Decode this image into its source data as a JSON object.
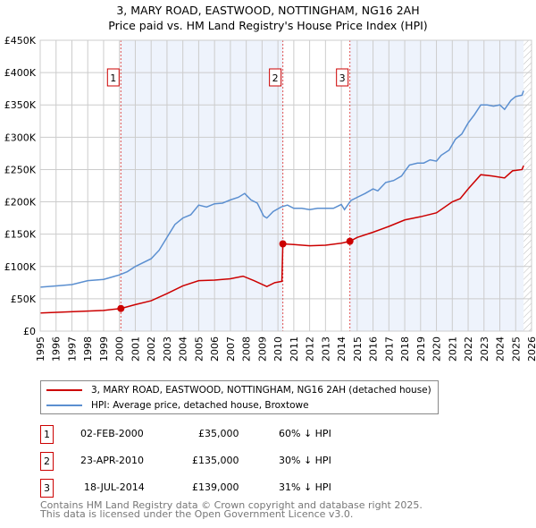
{
  "title": "3, MARY ROAD, EASTWOOD, NOTTINGHAM, NG16 2AH",
  "subtitle": "Price paid vs. HM Land Registry's House Price Index (HPI)",
  "colors": {
    "property": "#cc0000",
    "hpi": "#5b8fd0",
    "shade": "#eef3fc"
  },
  "chart_data": {
    "type": "line",
    "xlim": [
      1995,
      2026
    ],
    "ylim": [
      0,
      450000
    ],
    "x_ticks": [
      "1995",
      "1996",
      "1997",
      "1998",
      "1999",
      "2000",
      "2001",
      "2002",
      "2003",
      "2004",
      "2005",
      "2006",
      "2007",
      "2008",
      "2009",
      "2010",
      "2011",
      "2012",
      "2013",
      "2014",
      "2015",
      "2016",
      "2017",
      "2018",
      "2019",
      "2020",
      "2021",
      "2022",
      "2023",
      "2024",
      "2025",
      "2026"
    ],
    "y_ticks": [
      {
        "v": 0,
        "label": "£0"
      },
      {
        "v": 50000,
        "label": "£50K"
      },
      {
        "v": 100000,
        "label": "£100K"
      },
      {
        "v": 150000,
        "label": "£150K"
      },
      {
        "v": 200000,
        "label": "£200K"
      },
      {
        "v": 250000,
        "label": "£250K"
      },
      {
        "v": 300000,
        "label": "£300K"
      },
      {
        "v": 350000,
        "label": "£350K"
      },
      {
        "v": 400000,
        "label": "£400K"
      },
      {
        "v": 450000,
        "label": "£450K"
      }
    ],
    "series": [
      {
        "name": "3, MARY ROAD, EASTWOOD, NOTTINGHAM, NG16 2AH (detached house)",
        "color": "#cc0000",
        "x": [
          1995,
          1999,
          2000.09,
          2001,
          2002,
          2003,
          2004,
          2005,
          2006,
          2007,
          2007.8,
          2008.5,
          2009.3,
          2009.8,
          2010.25,
          2010.31,
          2011,
          2012,
          2013,
          2014,
          2014.54,
          2015,
          2016,
          2017,
          2018,
          2019,
          2020,
          2021,
          2021.5,
          2022,
          2022.8,
          2023.5,
          2024.3,
          2024.8,
          2025.4,
          2025.5
        ],
        "y": [
          28000,
          32000,
          35000,
          41000,
          47000,
          58000,
          70000,
          78000,
          79000,
          81000,
          85000,
          78000,
          69000,
          75000,
          77000,
          135000,
          134000,
          132000,
          133000,
          136000,
          139000,
          145000,
          153000,
          162000,
          172000,
          177000,
          183000,
          200000,
          205000,
          220000,
          242000,
          240000,
          237000,
          248000,
          250000,
          256000
        ]
      },
      {
        "name": "HPI: Average price, detached house, Broxtowe",
        "color": "#5b8fd0",
        "x": [
          1995,
          1996,
          1997,
          1998,
          1999,
          2000,
          2000.5,
          2001,
          2002,
          2002.5,
          2003,
          2003.5,
          2004,
          2004.5,
          2005,
          2005.5,
          2006,
          2006.5,
          2007,
          2007.5,
          2007.9,
          2008.3,
          2008.7,
          2009.1,
          2009.3,
          2009.7,
          2010.2,
          2010.6,
          2011,
          2011.5,
          2012,
          2012.5,
          2013,
          2013.5,
          2014,
          2014.2,
          2014.6,
          2015,
          2015.5,
          2016,
          2016.3,
          2016.8,
          2017.3,
          2017.8,
          2018,
          2018.3,
          2018.8,
          2019.2,
          2019.6,
          2020,
          2020.3,
          2020.8,
          2021.2,
          2021.6,
          2022,
          2022.4,
          2022.8,
          2023.2,
          2023.6,
          2024,
          2024.3,
          2024.7,
          2025,
          2025.4,
          2025.5
        ],
        "y": [
          68000,
          70000,
          72000,
          78000,
          80000,
          87000,
          92000,
          100000,
          112000,
          125000,
          145000,
          165000,
          175000,
          180000,
          195000,
          192000,
          197000,
          198000,
          203000,
          207000,
          213000,
          203000,
          198000,
          178000,
          175000,
          185000,
          192000,
          195000,
          190000,
          190000,
          188000,
          190000,
          190000,
          190000,
          196000,
          188000,
          202000,
          207000,
          213000,
          220000,
          217000,
          230000,
          233000,
          240000,
          247000,
          257000,
          260000,
          260000,
          265000,
          263000,
          272000,
          280000,
          297000,
          305000,
          322000,
          335000,
          350000,
          350000,
          348000,
          350000,
          343000,
          357000,
          363000,
          365000,
          372000
        ]
      }
    ],
    "sales": [
      {
        "label": "1",
        "x": 2000.09,
        "y": 35000,
        "date": "02-FEB-2000",
        "price": "£35,000",
        "hpi": "60% ↓ HPI"
      },
      {
        "label": "2",
        "x": 2010.31,
        "y": 135000,
        "date": "23-APR-2010",
        "price": "£135,000",
        "hpi": "30% ↓ HPI"
      },
      {
        "label": "3",
        "x": 2014.54,
        "y": 139000,
        "date": "18-JUL-2014",
        "price": "£139,000",
        "hpi": "31% ↓ HPI"
      }
    ],
    "hatch_from": 2025.5
  },
  "footer": [
    "Contains HM Land Registry data © Crown copyright and database right 2025.",
    "This data is licensed under the Open Government Licence v3.0."
  ]
}
